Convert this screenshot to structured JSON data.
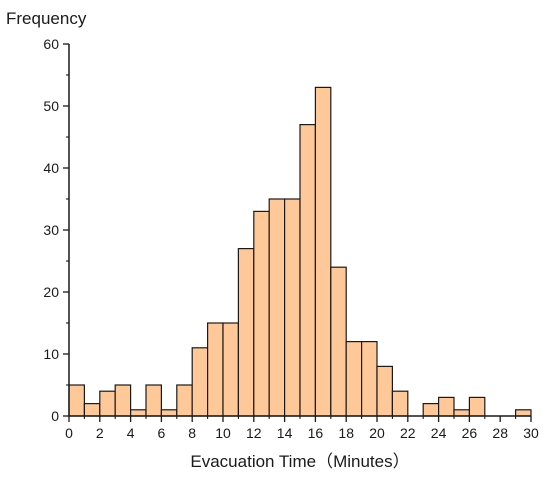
{
  "chart_data": {
    "type": "bar",
    "title": "",
    "xlabel": "Evacuation Time（Minutes）",
    "ylabel": "Frequency",
    "xlim": [
      0,
      30
    ],
    "ylim": [
      0,
      60
    ],
    "x_ticks": [
      0,
      2,
      4,
      6,
      8,
      10,
      12,
      14,
      16,
      18,
      20,
      22,
      24,
      26,
      28,
      30
    ],
    "y_ticks": [
      0,
      10,
      20,
      30,
      40,
      50,
      60
    ],
    "bin_width": 1,
    "bin_starts": [
      0,
      1,
      2,
      3,
      4,
      5,
      6,
      7,
      8,
      9,
      10,
      11,
      12,
      13,
      14,
      15,
      16,
      17,
      18,
      19,
      20,
      21,
      22,
      23,
      24,
      25,
      26,
      27,
      28,
      29
    ],
    "values": [
      5,
      2,
      4,
      5,
      1,
      5,
      1,
      5,
      11,
      15,
      15,
      27,
      33,
      35,
      35,
      47,
      53,
      24,
      12,
      12,
      8,
      4,
      0,
      2,
      3,
      1,
      3,
      0,
      0,
      1
    ],
    "grid": false,
    "legend": "none",
    "colors": {
      "bar_fill": "#FFC898",
      "bar_edge": "#1a1a1a",
      "axis": "#1a1a1a"
    }
  }
}
